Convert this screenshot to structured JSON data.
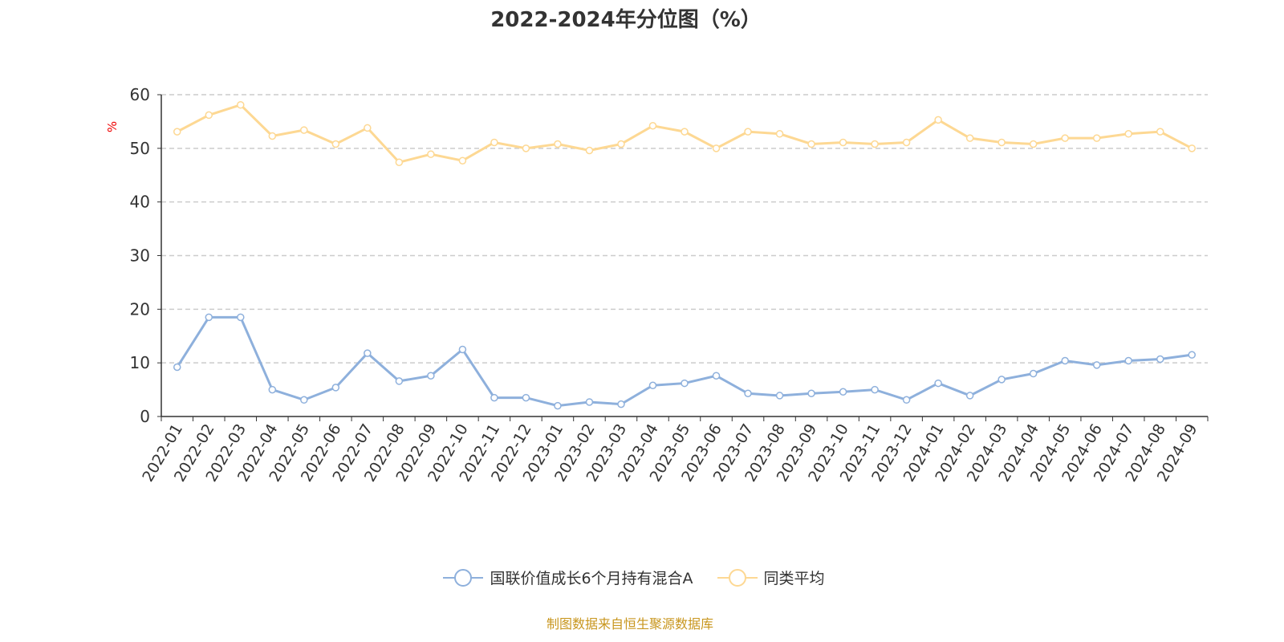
{
  "chart_data": {
    "type": "line",
    "title": "2022-2024年分位图（%）",
    "ylabel": "%",
    "ylim": [
      0,
      60
    ],
    "yticks": [
      0,
      10,
      20,
      30,
      40,
      50,
      60
    ],
    "grid": true,
    "legend_position": "bottom",
    "categories": [
      "2022-01",
      "2022-02",
      "2022-03",
      "2022-04",
      "2022-05",
      "2022-06",
      "2022-07",
      "2022-08",
      "2022-09",
      "2022-10",
      "2022-11",
      "2022-12",
      "2023-01",
      "2023-02",
      "2023-03",
      "2023-04",
      "2023-05",
      "2023-06",
      "2023-07",
      "2023-08",
      "2023-09",
      "2023-10",
      "2023-11",
      "2023-12",
      "2024-01",
      "2024-02",
      "2024-03",
      "2024-04",
      "2024-05",
      "2024-06",
      "2024-07",
      "2024-08",
      "2024-09"
    ],
    "series": [
      {
        "name": "国联价值成长6个月持有混合A",
        "color": "#8eb0dc",
        "values": [
          9.2,
          18.5,
          18.5,
          5.0,
          3.1,
          5.4,
          11.8,
          6.6,
          7.6,
          12.5,
          3.5,
          3.5,
          2.0,
          2.7,
          2.3,
          5.8,
          6.2,
          7.6,
          4.3,
          3.9,
          4.3,
          4.6,
          5.0,
          3.1,
          6.2,
          3.9,
          6.9,
          8.0,
          10.4,
          9.6,
          10.4,
          10.7,
          11.5
        ]
      },
      {
        "name": "同类平均",
        "color": "#fdd893",
        "values": [
          53.1,
          56.2,
          58.1,
          52.3,
          53.4,
          50.8,
          53.8,
          47.4,
          48.9,
          47.7,
          51.1,
          50.0,
          50.8,
          49.6,
          50.8,
          54.2,
          53.1,
          50.0,
          53.1,
          52.7,
          50.8,
          51.1,
          50.8,
          51.1,
          55.3,
          51.9,
          51.1,
          50.8,
          51.9,
          51.9,
          52.7,
          53.1,
          50.0
        ]
      }
    ]
  },
  "source": "制图数据来自恒生聚源数据库"
}
